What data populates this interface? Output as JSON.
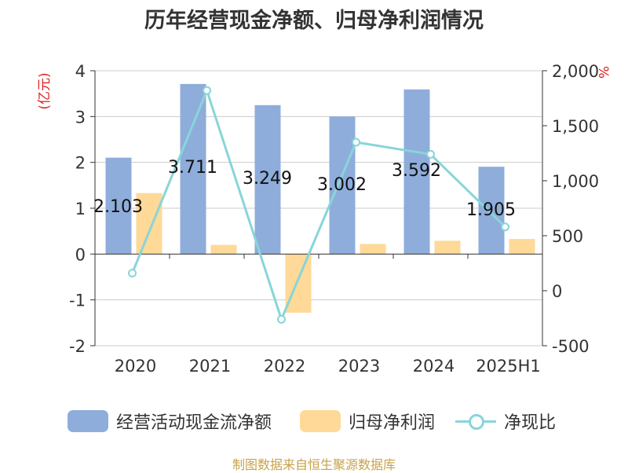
{
  "title": "历年经营现金净额、归母净利润情况",
  "source": "制图数据来自恒生聚源数据库",
  "colors": {
    "cash": "#8eaddb",
    "profit": "#fed997",
    "ratio": "#88d5d9",
    "axis_unit_left": "#e02020",
    "axis_unit_right": "#e02020",
    "grid": "#cccccc",
    "text": "#333333",
    "source": "#c8a24a"
  },
  "chart_data": {
    "type": "bar",
    "categories": [
      "2020",
      "2021",
      "2022",
      "2023",
      "2024",
      "2025H1"
    ],
    "series": [
      {
        "name": "经营活动现金流净额",
        "type": "bar",
        "axis": "left",
        "values": [
          2.103,
          3.711,
          3.249,
          3.002,
          3.592,
          1.905
        ],
        "data_labels": [
          "2.103",
          "3.711",
          "3.249",
          "3.002",
          "3.592",
          "1.905"
        ]
      },
      {
        "name": "归母净利润",
        "type": "bar",
        "axis": "left",
        "values": [
          1.33,
          0.2,
          -1.28,
          0.22,
          0.29,
          0.33
        ]
      },
      {
        "name": "净现比",
        "type": "line",
        "axis": "right",
        "values": [
          160,
          1820,
          -260,
          1350,
          1240,
          580
        ]
      }
    ],
    "y_left": {
      "label": "(亿元)",
      "ylim": [
        -2,
        4
      ],
      "ticks": [
        -2,
        -1,
        0,
        1,
        2,
        3,
        4
      ],
      "tick_labels": [
        "-2",
        "-1",
        "0",
        "1",
        "2",
        "3",
        "4"
      ]
    },
    "y_right": {
      "label": "%",
      "ylim": [
        -500,
        2000
      ],
      "ticks": [
        -500,
        0,
        500,
        1000,
        1500,
        2000
      ],
      "tick_labels": [
        "-500",
        "0",
        "500",
        "1,000",
        "1,500",
        "2,000"
      ]
    },
    "grid": true,
    "legend_position": "bottom"
  }
}
